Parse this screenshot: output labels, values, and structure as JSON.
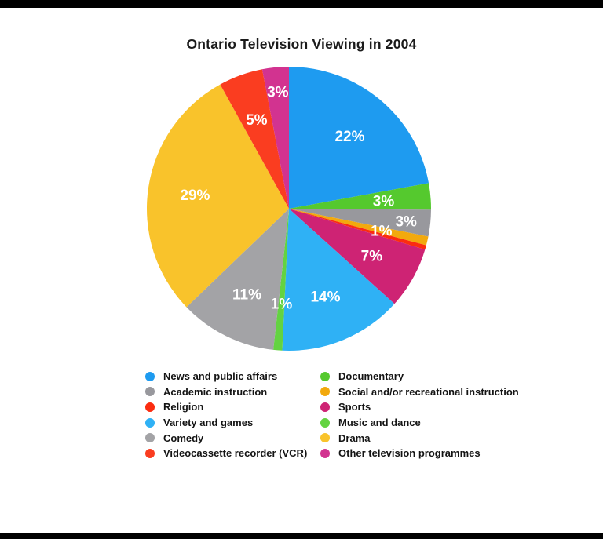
{
  "page": {
    "background_color": "#ffffff",
    "top_bar_color": "#000000",
    "bottom_bar_color": "#000000"
  },
  "chart_data": {
    "type": "pie",
    "title": "Ontario Television Viewing in 2004",
    "start_angle_deg": 0,
    "direction": "clockwise",
    "legend_position": "bottom-two-columns",
    "slices": [
      {
        "label": "News and public affairs",
        "value": 22,
        "pct_label": "22%",
        "color": "#1E9BF0"
      },
      {
        "label": "Documentary",
        "value": 3,
        "pct_label": "3%",
        "color": "#55C92E"
      },
      {
        "label": "Academic instruction",
        "value": 3,
        "pct_label": "3%",
        "color": "#98989D"
      },
      {
        "label": "Social and/or recreational instruction",
        "value": 1,
        "pct_label": "1%",
        "color": "#F2A90D"
      },
      {
        "label": "Religion",
        "value": 0.5,
        "pct_label": "",
        "color": "#FB2C10"
      },
      {
        "label": "Sports",
        "value": 7,
        "pct_label": "7%",
        "color": "#CE2374"
      },
      {
        "label": "Variety and games",
        "value": 14,
        "pct_label": "14%",
        "color": "#2FB1F5"
      },
      {
        "label": "Music and dance",
        "value": 1,
        "pct_label": "1%",
        "color": "#63D341"
      },
      {
        "label": "Comedy",
        "value": 11,
        "pct_label": "11%",
        "color": "#A3A3A6"
      },
      {
        "label": "Drama",
        "value": 29,
        "pct_label": "29%",
        "color": "#F9C32B"
      },
      {
        "label": "Videocassette recorder (VCR)",
        "value": 5,
        "pct_label": "5%",
        "color": "#FA3D20"
      },
      {
        "label": "Other television programmes",
        "value": 3,
        "pct_label": "3%",
        "color": "#D23390"
      }
    ],
    "legend_columns": [
      [
        0,
        2,
        4,
        6,
        8,
        10
      ],
      [
        1,
        3,
        5,
        7,
        9,
        11
      ]
    ]
  }
}
